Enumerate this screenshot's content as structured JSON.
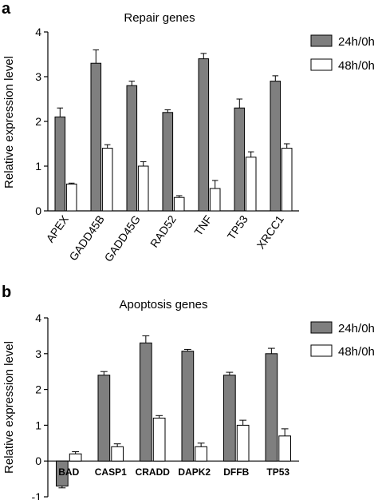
{
  "chart_data": [
    {
      "type": "bar",
      "panel_label": "a",
      "title": "Repair genes",
      "ylabel": "Relative expression level",
      "xlabel": "",
      "ylim": [
        0,
        4
      ],
      "yticks": [
        0,
        1,
        2,
        3,
        4
      ],
      "categories": [
        "APEX",
        "GADD45B",
        "GADD45G",
        "RAD52",
        "TNF",
        "TP53",
        "XRCC1"
      ],
      "category_label_style": "rotated",
      "series": [
        {
          "name": "24h/0h",
          "color": "#7f7f7f",
          "values": [
            2.1,
            3.3,
            2.8,
            2.2,
            3.4,
            2.3,
            2.9
          ],
          "errors": [
            0.2,
            0.3,
            0.1,
            0.06,
            0.12,
            0.2,
            0.12
          ]
        },
        {
          "name": "48h/0h",
          "color": "#ffffff",
          "values": [
            0.6,
            1.4,
            1.0,
            0.3,
            0.5,
            1.2,
            1.4
          ],
          "errors": [
            0.02,
            0.08,
            0.1,
            0.04,
            0.18,
            0.12,
            0.1
          ]
        }
      ],
      "legend_position": "top-right",
      "grid": false
    },
    {
      "type": "bar",
      "panel_label": "b",
      "title": "Apoptosis genes",
      "ylabel": "Relative expression level",
      "xlabel": "",
      "ylim": [
        -1,
        4
      ],
      "yticks": [
        -1,
        0,
        1,
        2,
        3,
        4
      ],
      "categories": [
        "BAD",
        "CASP1",
        "CRADD",
        "DAPK2",
        "DFFB",
        "TP53"
      ],
      "category_label_style": "bold-at-zero",
      "series": [
        {
          "name": "24h/0h",
          "color": "#7f7f7f",
          "values": [
            -0.7,
            2.4,
            3.3,
            3.07,
            2.4,
            3.0
          ],
          "errors": [
            0.05,
            0.1,
            0.2,
            0.05,
            0.08,
            0.15
          ]
        },
        {
          "name": "48h/0h",
          "color": "#ffffff",
          "values": [
            0.2,
            0.4,
            1.2,
            0.4,
            1.0,
            0.7
          ],
          "errors": [
            0.06,
            0.08,
            0.07,
            0.1,
            0.14,
            0.2
          ]
        }
      ],
      "legend_position": "top-right",
      "grid": false
    }
  ]
}
